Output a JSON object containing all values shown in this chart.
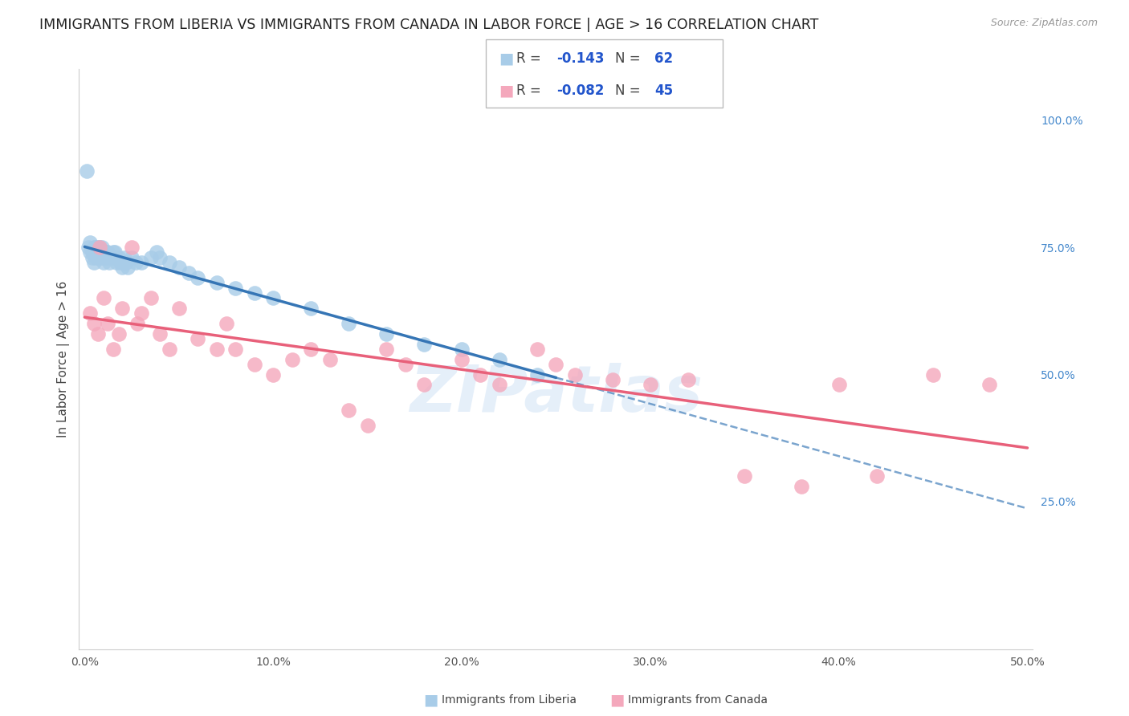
{
  "title": "IMMIGRANTS FROM LIBERIA VS IMMIGRANTS FROM CANADA IN LABOR FORCE | AGE > 16 CORRELATION CHART",
  "source": "Source: ZipAtlas.com",
  "ylabel": "In Labor Force | Age > 16",
  "xlim": [
    0.0,
    0.5
  ],
  "ylim": [
    0.0,
    1.05
  ],
  "right_ytick_labels": [
    "100.0%",
    "75.0%",
    "50.0%",
    "25.0%"
  ],
  "right_ytick_values": [
    1.0,
    0.75,
    0.5,
    0.25
  ],
  "bottom_xtick_labels": [
    "0.0%",
    "10.0%",
    "20.0%",
    "30.0%",
    "40.0%",
    "50.0%"
  ],
  "bottom_xtick_values": [
    0.0,
    0.1,
    0.2,
    0.3,
    0.4,
    0.5
  ],
  "liberia_R": -0.143,
  "liberia_N": 62,
  "canada_R": -0.082,
  "canada_N": 45,
  "liberia_color": "#a8cce8",
  "canada_color": "#f4a8bc",
  "liberia_line_color": "#3575b5",
  "canada_line_color": "#e8607a",
  "liberia_scatter_x": [
    0.001,
    0.002,
    0.003,
    0.003,
    0.004,
    0.004,
    0.005,
    0.005,
    0.005,
    0.006,
    0.006,
    0.006,
    0.007,
    0.007,
    0.007,
    0.008,
    0.008,
    0.008,
    0.009,
    0.009,
    0.009,
    0.01,
    0.01,
    0.01,
    0.011,
    0.011,
    0.012,
    0.012,
    0.013,
    0.013,
    0.014,
    0.015,
    0.015,
    0.016,
    0.017,
    0.018,
    0.019,
    0.02,
    0.021,
    0.022,
    0.023,
    0.025,
    0.027,
    0.03,
    0.035,
    0.038,
    0.04,
    0.045,
    0.05,
    0.055,
    0.06,
    0.07,
    0.08,
    0.09,
    0.1,
    0.12,
    0.14,
    0.16,
    0.18,
    0.2,
    0.22,
    0.24
  ],
  "liberia_scatter_y": [
    0.9,
    0.75,
    0.76,
    0.74,
    0.73,
    0.74,
    0.75,
    0.74,
    0.72,
    0.75,
    0.74,
    0.73,
    0.75,
    0.74,
    0.73,
    0.75,
    0.74,
    0.73,
    0.75,
    0.74,
    0.73,
    0.74,
    0.73,
    0.72,
    0.74,
    0.73,
    0.74,
    0.73,
    0.73,
    0.72,
    0.73,
    0.74,
    0.73,
    0.74,
    0.72,
    0.73,
    0.72,
    0.71,
    0.73,
    0.72,
    0.71,
    0.73,
    0.72,
    0.72,
    0.73,
    0.74,
    0.73,
    0.72,
    0.71,
    0.7,
    0.69,
    0.68,
    0.67,
    0.66,
    0.65,
    0.63,
    0.6,
    0.58,
    0.56,
    0.55,
    0.53,
    0.5
  ],
  "canada_scatter_x": [
    0.003,
    0.005,
    0.007,
    0.008,
    0.01,
    0.012,
    0.015,
    0.018,
    0.02,
    0.025,
    0.028,
    0.03,
    0.035,
    0.04,
    0.045,
    0.05,
    0.06,
    0.07,
    0.075,
    0.08,
    0.09,
    0.1,
    0.11,
    0.12,
    0.13,
    0.14,
    0.15,
    0.16,
    0.17,
    0.18,
    0.2,
    0.21,
    0.22,
    0.24,
    0.25,
    0.26,
    0.28,
    0.3,
    0.32,
    0.35,
    0.38,
    0.4,
    0.42,
    0.45,
    0.48
  ],
  "canada_scatter_y": [
    0.62,
    0.6,
    0.58,
    0.75,
    0.65,
    0.6,
    0.55,
    0.58,
    0.63,
    0.75,
    0.6,
    0.62,
    0.65,
    0.58,
    0.55,
    0.63,
    0.57,
    0.55,
    0.6,
    0.55,
    0.52,
    0.5,
    0.53,
    0.55,
    0.53,
    0.43,
    0.4,
    0.55,
    0.52,
    0.48,
    0.53,
    0.5,
    0.48,
    0.55,
    0.52,
    0.5,
    0.49,
    0.48,
    0.49,
    0.3,
    0.28,
    0.48,
    0.3,
    0.5,
    0.48
  ],
  "watermark": "ZIPatlas",
  "background_color": "#ffffff",
  "grid_color": "#d0d0d0",
  "title_fontsize": 12.5,
  "axis_label_fontsize": 11,
  "tick_fontsize": 10,
  "legend_fontsize": 12
}
